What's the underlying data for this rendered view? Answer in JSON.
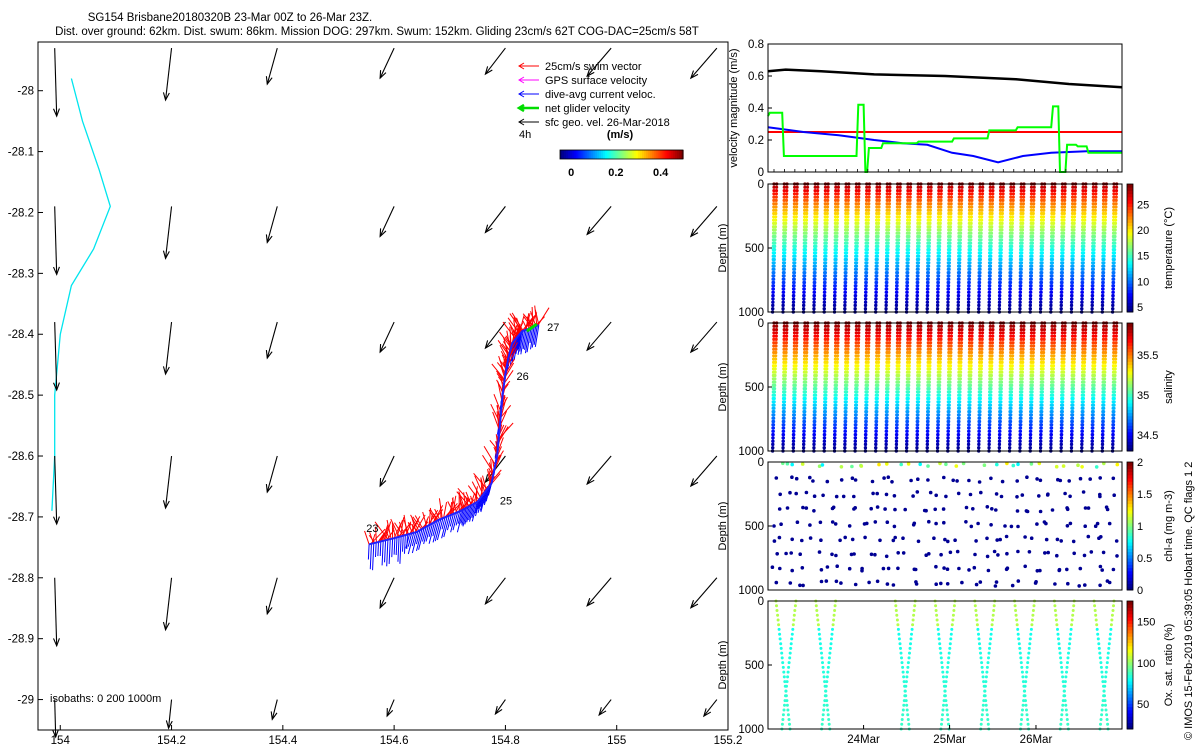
{
  "title_line1": "SG154 Brisbane20180320B 23-Mar 00Z to 26-Mar 23Z.",
  "title_line2": "Dist. over ground: 62km. Dist. swum: 86km. Mission DOG: 297km. Swum: 152km. Gliding 23cm/s 62T COG-DAC=25cm/s 58T",
  "side_note": "© IMOS 15-Feb-2019 05:39:05 Hobart time. QC flags 1  2",
  "colors": {
    "swim": "#ff0000",
    "gps": "#ff00ff",
    "dac": "#0000ff",
    "net": "#00dd00",
    "geo": "#000000",
    "isobath": "#00e5ee"
  },
  "chart_data": [
    {
      "type": "map-quiver",
      "name": "track map",
      "xlim": [
        153.96,
        155.2
      ],
      "ylim": [
        -29.05,
        -27.92
      ],
      "x_ticks": [
        "154",
        "154.2",
        "154.4",
        "154.6",
        "154.8",
        "155",
        "155.2"
      ],
      "x_tick_values": [
        154,
        154.2,
        154.4,
        154.6,
        154.8,
        155,
        155.2
      ],
      "y_ticks": [
        "-28",
        "-28.1",
        "-28.2",
        "-28.3",
        "-28.4",
        "-28.5",
        "-28.6",
        "-28.7",
        "-28.8",
        "-28.9",
        "-29"
      ],
      "y_tick_values": [
        -28,
        -28.1,
        -28.2,
        -28.3,
        -28.4,
        -28.5,
        -28.6,
        -28.7,
        -28.8,
        -28.9,
        -29
      ],
      "legend": {
        "entries": [
          "25cm/s swim vector",
          "GPS surface velocity",
          "dive-avg current veloc.",
          "net glider velocity",
          "sfc geo. vel. 26-Mar-2018"
        ],
        "note": "4h"
      },
      "colorbar": {
        "title": "(m/s)",
        "ticks": [
          "0",
          "0.2",
          "0.4"
        ],
        "tick_values": [
          0,
          0.2,
          0.4
        ],
        "range": [
          -0.05,
          0.5
        ]
      },
      "isobath_label": "isobaths: 0   200  1000m",
      "day_labels": [
        {
          "text": "23",
          "lon": 154.55,
          "lat": -28.725
        },
        {
          "text": "25",
          "lon": 154.79,
          "lat": -28.68
        },
        {
          "text": "26",
          "lon": 154.82,
          "lat": -28.475
        },
        {
          "text": "27",
          "lon": 154.875,
          "lat": -28.395
        }
      ],
      "track": [
        [
          154.555,
          -28.745
        ],
        [
          154.6,
          -28.735
        ],
        [
          154.64,
          -28.725
        ],
        [
          154.68,
          -28.705
        ],
        [
          154.72,
          -28.69
        ],
        [
          154.75,
          -28.675
        ],
        [
          154.775,
          -28.645
        ],
        [
          154.785,
          -28.6
        ],
        [
          154.79,
          -28.55
        ],
        [
          154.795,
          -28.5
        ],
        [
          154.8,
          -28.465
        ],
        [
          154.805,
          -28.44
        ],
        [
          154.812,
          -28.415
        ],
        [
          154.83,
          -28.395
        ],
        [
          154.86,
          -28.385
        ]
      ],
      "geo_arrow_grid": {
        "lons": [
          153.99,
          154.2,
          154.39,
          154.6,
          154.8,
          154.99,
          155.18
        ],
        "lats": [
          -27.93,
          -28.19,
          -28.38,
          -28.6,
          -28.8,
          -29.0
        ]
      },
      "isobath_line": [
        [
          154.02,
          -27.98
        ],
        [
          154.04,
          -28.05
        ],
        [
          154.07,
          -28.13
        ],
        [
          154.09,
          -28.19
        ],
        [
          154.06,
          -28.26
        ],
        [
          154.02,
          -28.32
        ],
        [
          154.0,
          -28.4
        ],
        [
          153.99,
          -28.5
        ],
        [
          153.99,
          -28.6
        ],
        [
          153.985,
          -28.69
        ]
      ]
    },
    {
      "type": "line",
      "name": "velocity magnitude",
      "ylabel": "velocity magnitude (m/s)",
      "ylim": [
        0,
        0.8
      ],
      "y_ticks": [
        "0",
        "0.2",
        "0.4",
        "0.6",
        "0.8"
      ],
      "y_tick_values": [
        0,
        0.2,
        0.4,
        0.6,
        0.8
      ],
      "xlim": [
        0,
        1
      ],
      "series": [
        {
          "name": "black",
          "color": "#000000",
          "x": [
            0,
            0.05,
            0.15,
            0.3,
            0.5,
            0.7,
            0.85,
            1
          ],
          "values": [
            0.63,
            0.64,
            0.63,
            0.61,
            0.6,
            0.58,
            0.55,
            0.53
          ]
        },
        {
          "name": "red",
          "color": "#ff0000",
          "x": [
            0,
            1
          ],
          "values": [
            0.25,
            0.25
          ]
        },
        {
          "name": "blue",
          "color": "#0000ff",
          "x": [
            0,
            0.1,
            0.2,
            0.3,
            0.38,
            0.45,
            0.52,
            0.58,
            0.65,
            0.72,
            0.8,
            0.9,
            1
          ],
          "values": [
            0.28,
            0.25,
            0.23,
            0.2,
            0.18,
            0.17,
            0.12,
            0.1,
            0.06,
            0.1,
            0.12,
            0.13,
            0.13
          ]
        },
        {
          "name": "green",
          "color": "#00ff00",
          "x": [
            0,
            0.005,
            0.04,
            0.045,
            0.25,
            0.255,
            0.27,
            0.275,
            0.28,
            0.285,
            0.32,
            0.325,
            0.42,
            0.425,
            0.52,
            0.525,
            0.62,
            0.625,
            0.7,
            0.705,
            0.8,
            0.805,
            0.82,
            0.825,
            0.84,
            0.845,
            0.87,
            0.875,
            0.9,
            0.905,
            1
          ],
          "values": [
            0.35,
            0.37,
            0.37,
            0.1,
            0.1,
            0.42,
            0.42,
            0.0,
            0.0,
            0.15,
            0.15,
            0.18,
            0.18,
            0.19,
            0.19,
            0.21,
            0.21,
            0.26,
            0.26,
            0.28,
            0.28,
            0.41,
            0.41,
            0.0,
            0.0,
            0.17,
            0.17,
            0.16,
            0.16,
            0.12,
            0.12
          ]
        }
      ]
    },
    {
      "type": "scatter",
      "name": "temperature section",
      "ylabel": "Depth (m)",
      "y_ticks": [
        "0",
        "500",
        "1000"
      ],
      "y_tick_values": [
        0,
        500,
        1000
      ],
      "ylim": [
        1000,
        0
      ],
      "colorbar_label": "temperature (°C)",
      "colorbar_ticks": [
        "5",
        "10",
        "15",
        "20",
        "25"
      ],
      "colorbar_tick_values": [
        5,
        10,
        15,
        20,
        25
      ],
      "crange": [
        4,
        29
      ],
      "dives": 34,
      "max_depth": 1000
    },
    {
      "type": "scatter",
      "name": "salinity section",
      "ylabel": "Depth (m)",
      "y_ticks": [
        "0",
        "500",
        "1000"
      ],
      "y_tick_values": [
        0,
        500,
        1000
      ],
      "ylim": [
        1000,
        0
      ],
      "colorbar_label": "salinity",
      "colorbar_ticks": [
        "34.5",
        "35",
        "35.5"
      ],
      "colorbar_tick_values": [
        34.5,
        35,
        35.5
      ],
      "crange": [
        34.3,
        35.9
      ],
      "dives": 34,
      "max_depth": 1000
    },
    {
      "type": "scatter",
      "name": "chlorophyll section",
      "ylabel": "Depth (m)",
      "y_ticks": [
        "0",
        "500",
        "1000"
      ],
      "y_tick_values": [
        0,
        500,
        1000
      ],
      "ylim": [
        1000,
        0
      ],
      "colorbar_label": "chl-a (mg m-3)",
      "colorbar_ticks": [
        "0",
        "0.5",
        "1",
        "1.5",
        "2"
      ],
      "colorbar_tick_values": [
        0,
        0.5,
        1,
        1.5,
        2
      ],
      "crange": [
        0,
        2
      ],
      "dives": 34,
      "max_depth": 1000
    },
    {
      "type": "scatter",
      "name": "oxygen section",
      "ylabel": "Depth (m)",
      "y_ticks": [
        "0",
        "500",
        "1000"
      ],
      "y_tick_values": [
        0,
        500,
        1000
      ],
      "ylim": [
        1000,
        0
      ],
      "x_ticks": [
        "24Mar",
        "25Mar",
        "26Mar"
      ],
      "x_tick_values": [
        0.27,
        0.513,
        0.757
      ],
      "colorbar_label": "Ox. sat. ratio (%)",
      "colorbar_ticks": [
        "50",
        "100",
        "150"
      ],
      "colorbar_tick_values": [
        50,
        100,
        150
      ],
      "crange": [
        20,
        175
      ],
      "dives": 18,
      "max_depth": 1000
    }
  ]
}
